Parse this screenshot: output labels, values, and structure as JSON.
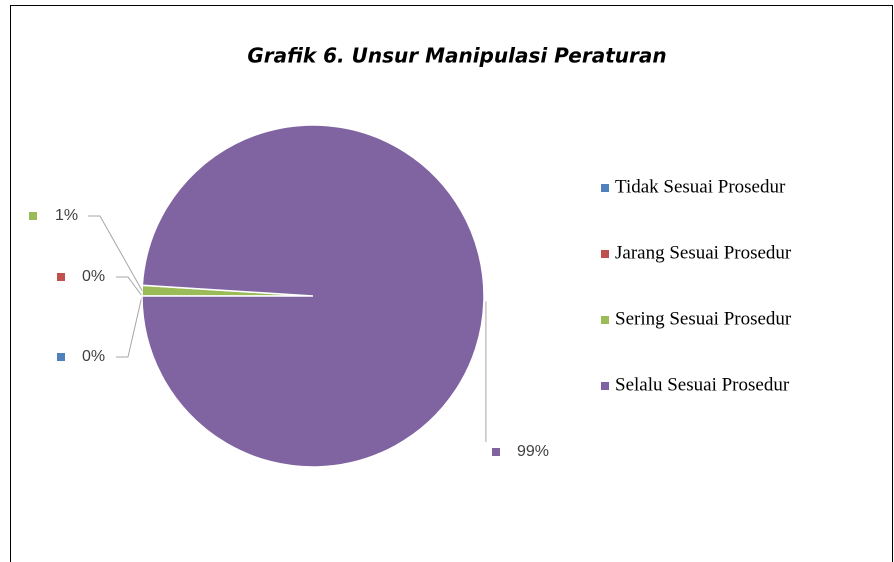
{
  "chart_data": {
    "type": "pie",
    "title": "Grafik 6. Unsur Manipulasi Peraturan",
    "categories": [
      "Tidak Sesuai Prosedur",
      "Jarang Sesuai Prosedur",
      "Sering Sesuai Prosedur",
      "Selalu Sesuai Prosedur"
    ],
    "values": [
      0,
      0,
      1,
      99
    ],
    "value_labels": [
      "0%",
      "0%",
      "1%",
      "99%"
    ],
    "colors": [
      "#4f81bd",
      "#c0504d",
      "#9bbb59",
      "#8064a2"
    ],
    "legend": "right"
  }
}
